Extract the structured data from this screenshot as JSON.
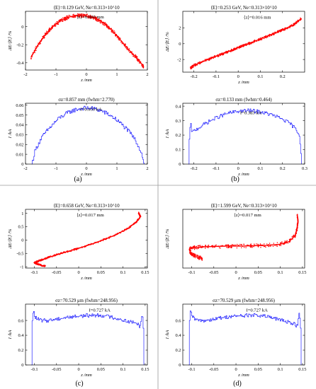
{
  "panel_labels": [
    "(a)",
    "(b)",
    "(c)",
    "(d)"
  ],
  "chart_data": [
    {
      "type": "scatter",
      "panel": "(a)",
      "title": "⟨E⟩=0.129 GeV, Ne=0.313×10^10",
      "annotation": "⟨z⟩=0.000 mm",
      "xlabel": "z /mm",
      "ylabel": "ΔE/⟨E⟩ /%",
      "xlim": [
        -2,
        2
      ],
      "ylim": [
        -0.48,
        0.17
      ],
      "xticks": [
        "-2",
        "-1",
        "0",
        "1",
        "2"
      ],
      "xtick_values": [
        -2,
        -1,
        0,
        1,
        2
      ],
      "yticks": [
        "-0.4",
        "-0.2",
        "0"
      ],
      "ytick_values": [
        -0.4,
        -0.2,
        0
      ],
      "color": "#ff0000",
      "x": [
        -1.82,
        -1.6,
        -1.4,
        -1.2,
        -1.0,
        -0.8,
        -0.6,
        -0.4,
        -0.2,
        0.0,
        0.2,
        0.4,
        0.6,
        0.8,
        1.0,
        1.2,
        1.4,
        1.6,
        1.75,
        1.88
      ],
      "y": [
        -0.34,
        -0.21,
        -0.11,
        -0.03,
        0.03,
        0.075,
        0.105,
        0.12,
        0.125,
        0.12,
        0.105,
        0.075,
        0.03,
        -0.03,
        -0.1,
        -0.18,
        -0.26,
        -0.33,
        -0.39,
        -0.44
      ],
      "spread": 0.02
    },
    {
      "type": "line",
      "panel": "(a)",
      "title": "σz=0.857 mm (fwhm=2.770)",
      "annotation": "I=0.059 kA",
      "xlabel": "z /mm",
      "ylabel": "I /kA",
      "xlim": [
        -2,
        2
      ],
      "ylim": [
        0,
        0.062
      ],
      "xticks": [
        "-2",
        "-1",
        "0",
        "1",
        "2"
      ],
      "xtick_values": [
        -2,
        -1,
        0,
        1,
        2
      ],
      "yticks": [
        "0",
        "0.01",
        "0.02",
        "0.03",
        "0.04",
        "0.05",
        "0.06"
      ],
      "ytick_values": [
        0,
        0.01,
        0.02,
        0.03,
        0.04,
        0.05,
        0.06
      ],
      "color": "#0000ff",
      "x": [
        -1.8,
        -1.75,
        -1.7,
        -1.6,
        -1.5,
        -1.3,
        -1.1,
        -0.9,
        -0.7,
        -0.5,
        -0.3,
        -0.1,
        0.1,
        0.3,
        0.5,
        0.7,
        0.9,
        1.1,
        1.3,
        1.5,
        1.6,
        1.7,
        1.8,
        1.85,
        1.9
      ],
      "y": [
        0.0,
        0.006,
        0.013,
        0.02,
        0.026,
        0.034,
        0.041,
        0.047,
        0.051,
        0.054,
        0.056,
        0.057,
        0.057,
        0.056,
        0.054,
        0.051,
        0.047,
        0.042,
        0.036,
        0.029,
        0.024,
        0.018,
        0.011,
        0.005,
        0.0
      ],
      "noise": 0.0022
    },
    {
      "type": "scatter",
      "panel": "(b)",
      "title": "⟨E⟩=0.253 GeV, Ne=0.313×10^10",
      "annotation": "⟨z⟩=0.016 mm",
      "xlabel": "z /mm",
      "ylabel": "ΔE/⟨E⟩ /%",
      "xlim": [
        -0.25,
        0.3
      ],
      "ylim": [
        -3.6,
        4.1
      ],
      "xticks": [
        "-0.2",
        "-0.1",
        "0",
        "0.1",
        "0.2"
      ],
      "xtick_values": [
        -0.2,
        -0.1,
        0,
        0.1,
        0.2
      ],
      "yticks": [
        "-2",
        "0",
        "2"
      ],
      "ytick_values": [
        -2,
        0,
        2
      ],
      "color": "#ff0000",
      "x": [
        -0.215,
        -0.2,
        -0.15,
        -0.1,
        -0.05,
        0.0,
        0.05,
        0.1,
        0.15,
        0.2,
        0.25,
        0.285
      ],
      "y": [
        -3.1,
        -2.75,
        -2.15,
        -1.6,
        -1.05,
        -0.5,
        0.05,
        0.6,
        1.15,
        1.75,
        2.4,
        3.2
      ],
      "spread": 0.15
    },
    {
      "type": "line",
      "panel": "(b)",
      "title": "σz=0.133 mm (fwhm=0.464)",
      "annotation": "I=0.383 kA",
      "xlabel": "z /mm",
      "ylabel": "I /kA",
      "xlim": [
        -0.25,
        0.3
      ],
      "ylim": [
        0,
        0.42
      ],
      "xticks": [
        "-0.2",
        "-0.1",
        "0",
        "0.1",
        "0.2",
        "0.3"
      ],
      "xtick_values": [
        -0.2,
        -0.1,
        0,
        0.1,
        0.2,
        0.3
      ],
      "yticks": [
        "0",
        "0.1",
        "0.2",
        "0.3",
        "0.4"
      ],
      "ytick_values": [
        0,
        0.1,
        0.2,
        0.3,
        0.4
      ],
      "color": "#0000ff",
      "x": [
        -0.225,
        -0.22,
        -0.215,
        -0.21,
        -0.2,
        -0.18,
        -0.15,
        -0.1,
        -0.05,
        0.0,
        0.05,
        0.1,
        0.15,
        0.2,
        0.24,
        0.26,
        0.275,
        0.28,
        0.285
      ],
      "y": [
        0.0,
        0.24,
        0.27,
        0.22,
        0.23,
        0.25,
        0.28,
        0.32,
        0.35,
        0.365,
        0.37,
        0.36,
        0.34,
        0.31,
        0.27,
        0.24,
        0.2,
        0.12,
        0.0
      ],
      "noise": 0.013
    },
    {
      "type": "scatter",
      "panel": "(c)",
      "title": "⟨E⟩=0.658 GeV, Ne=0.313×10^10",
      "annotation": "⟨z⟩=0.017 mm",
      "xlabel": "z /mm",
      "ylabel": "ΔE/⟨E⟩ /%",
      "xlim": [
        -0.12,
        0.155
      ],
      "ylim": [
        -1.05,
        1.15
      ],
      "xticks": [
        "-0.1",
        "-0.05",
        "0",
        "0.05",
        "0.1",
        "0.15"
      ],
      "xtick_values": [
        -0.1,
        -0.05,
        0,
        0.05,
        0.1,
        0.15
      ],
      "yticks": [
        "-1",
        "-0.5",
        "0",
        "0.5",
        "1"
      ],
      "ytick_values": [
        -1,
        -0.5,
        0,
        0.5,
        1
      ],
      "color": "#ff0000",
      "x": [
        -0.075,
        -0.088,
        -0.1,
        -0.09,
        -0.07,
        -0.04,
        0.0,
        0.04,
        0.08,
        0.11,
        0.13,
        0.14,
        0.135
      ],
      "y": [
        -0.98,
        -0.93,
        -0.85,
        -0.78,
        -0.66,
        -0.5,
        -0.31,
        -0.09,
        0.17,
        0.42,
        0.68,
        0.88,
        1.02
      ],
      "spread": 0.03
    },
    {
      "type": "line",
      "panel": "(c)",
      "title": "σz=70.529 μm (fwhm=248.956)",
      "annotation": "I=0.727 kA",
      "xlabel": "z /mm",
      "ylabel": "I /kA",
      "xlim": [
        -0.12,
        0.155
      ],
      "ylim": [
        0,
        0.82
      ],
      "xticks": [
        "-0.1",
        "-0.05",
        "0",
        "0.05",
        "0.1",
        "0.15"
      ],
      "xtick_values": [
        -0.1,
        -0.05,
        0,
        0.05,
        0.1,
        0.15
      ],
      "yticks": [
        "0",
        "0.2",
        "0.4",
        "0.6"
      ],
      "ytick_values": [
        0,
        0.2,
        0.4,
        0.6
      ],
      "color": "#0000ff",
      "x": [
        -0.107,
        -0.105,
        -0.103,
        -0.1,
        -0.095,
        -0.085,
        -0.07,
        -0.05,
        -0.03,
        0.0,
        0.03,
        0.05,
        0.07,
        0.09,
        0.11,
        0.13,
        0.138,
        0.142,
        0.145,
        0.147
      ],
      "y": [
        0.0,
        0.68,
        0.73,
        0.66,
        0.62,
        0.6,
        0.6,
        0.62,
        0.64,
        0.66,
        0.67,
        0.67,
        0.65,
        0.62,
        0.59,
        0.56,
        0.52,
        0.68,
        0.6,
        0.0
      ],
      "noise": 0.025
    },
    {
      "type": "scatter",
      "panel": "(d)",
      "title": "⟨E⟩=1.599 GeV, Ne=0.313×10^10",
      "annotation": "⟨z⟩=0.017 mm",
      "xlabel": "z /mm",
      "ylabel": "ΔE/⟨E⟩ /%",
      "xlim": [
        -0.12,
        0.155
      ],
      "ylim": [
        -0.6,
        0.95
      ],
      "xticks": [
        "-0.1",
        "-0.05",
        "0",
        "0.05",
        "0.1",
        "0.15"
      ],
      "xtick_values": [
        -0.1,
        -0.05,
        0,
        0.05,
        0.1,
        0.15
      ],
      "yticks": [],
      "ytick_values": [],
      "color": "#ff0000",
      "x": [
        -0.075,
        -0.09,
        -0.103,
        -0.105,
        -0.095,
        -0.075,
        -0.05,
        -0.02,
        0.01,
        0.04,
        0.07,
        0.1,
        0.12,
        0.133,
        0.138,
        0.14,
        0.138
      ],
      "y": [
        -0.35,
        -0.3,
        -0.2,
        -0.1,
        -0.06,
        -0.04,
        -0.03,
        -0.02,
        -0.02,
        -0.01,
        0.0,
        0.03,
        0.1,
        0.25,
        0.45,
        0.65,
        0.8
      ],
      "spread": 0.05
    },
    {
      "type": "line",
      "panel": "(d)",
      "title": "σz=70.529 μm (fwhm=248.956)",
      "annotation": "I=0.727 kA",
      "xlabel": "z /mm",
      "ylabel": "I /kA",
      "xlim": [
        -0.12,
        0.155
      ],
      "ylim": [
        0,
        0.82
      ],
      "xticks": [
        "-0.1",
        "-0.05",
        "0",
        "0.05",
        "0.1",
        "0.15"
      ],
      "xtick_values": [
        -0.1,
        -0.05,
        0,
        0.05,
        0.1,
        0.15
      ],
      "yticks": [
        "0",
        "0.2",
        "0.4",
        "0.6"
      ],
      "ytick_values": [
        0,
        0.2,
        0.4,
        0.6
      ],
      "color": "#0000ff",
      "x": [
        -0.107,
        -0.105,
        -0.103,
        -0.1,
        -0.095,
        -0.085,
        -0.07,
        -0.05,
        -0.03,
        0.0,
        0.03,
        0.05,
        0.07,
        0.09,
        0.11,
        0.13,
        0.138,
        0.142,
        0.145,
        0.147
      ],
      "y": [
        0.0,
        0.68,
        0.73,
        0.66,
        0.62,
        0.6,
        0.6,
        0.62,
        0.64,
        0.66,
        0.67,
        0.67,
        0.65,
        0.62,
        0.59,
        0.56,
        0.52,
        0.68,
        0.6,
        0.0
      ],
      "noise": 0.025
    }
  ]
}
